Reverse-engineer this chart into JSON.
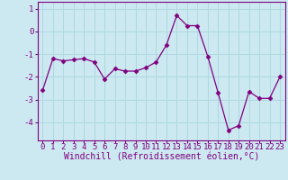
{
  "x": [
    0,
    1,
    2,
    3,
    4,
    5,
    6,
    7,
    8,
    9,
    10,
    11,
    12,
    13,
    14,
    15,
    16,
    17,
    18,
    19,
    20,
    21,
    22,
    23
  ],
  "y": [
    -2.6,
    -1.2,
    -1.3,
    -1.25,
    -1.2,
    -1.35,
    -2.1,
    -1.65,
    -1.75,
    -1.75,
    -1.6,
    -1.35,
    -0.6,
    0.7,
    0.25,
    0.25,
    -1.1,
    -2.7,
    -4.35,
    -4.15,
    -2.65,
    -2.95,
    -2.95,
    -2.0
  ],
  "line_color": "#800080",
  "marker": "D",
  "marker_size": 2.5,
  "bg_color": "#cce8f0",
  "grid_color": "#aed8e0",
  "xlabel": "Windchill (Refroidissement éolien,°C)",
  "xlabel_color": "#800080",
  "tick_color": "#800080",
  "ylim": [
    -4.8,
    1.3
  ],
  "xlim": [
    -0.5,
    23.5
  ],
  "yticks": [
    1,
    0,
    -1,
    -2,
    -3,
    -4
  ],
  "xticks": [
    0,
    1,
    2,
    3,
    4,
    5,
    6,
    7,
    8,
    9,
    10,
    11,
    12,
    13,
    14,
    15,
    16,
    17,
    18,
    19,
    20,
    21,
    22,
    23
  ],
  "spine_color": "#800080",
  "tick_fontsize": 6.5,
  "xlabel_fontsize": 7
}
